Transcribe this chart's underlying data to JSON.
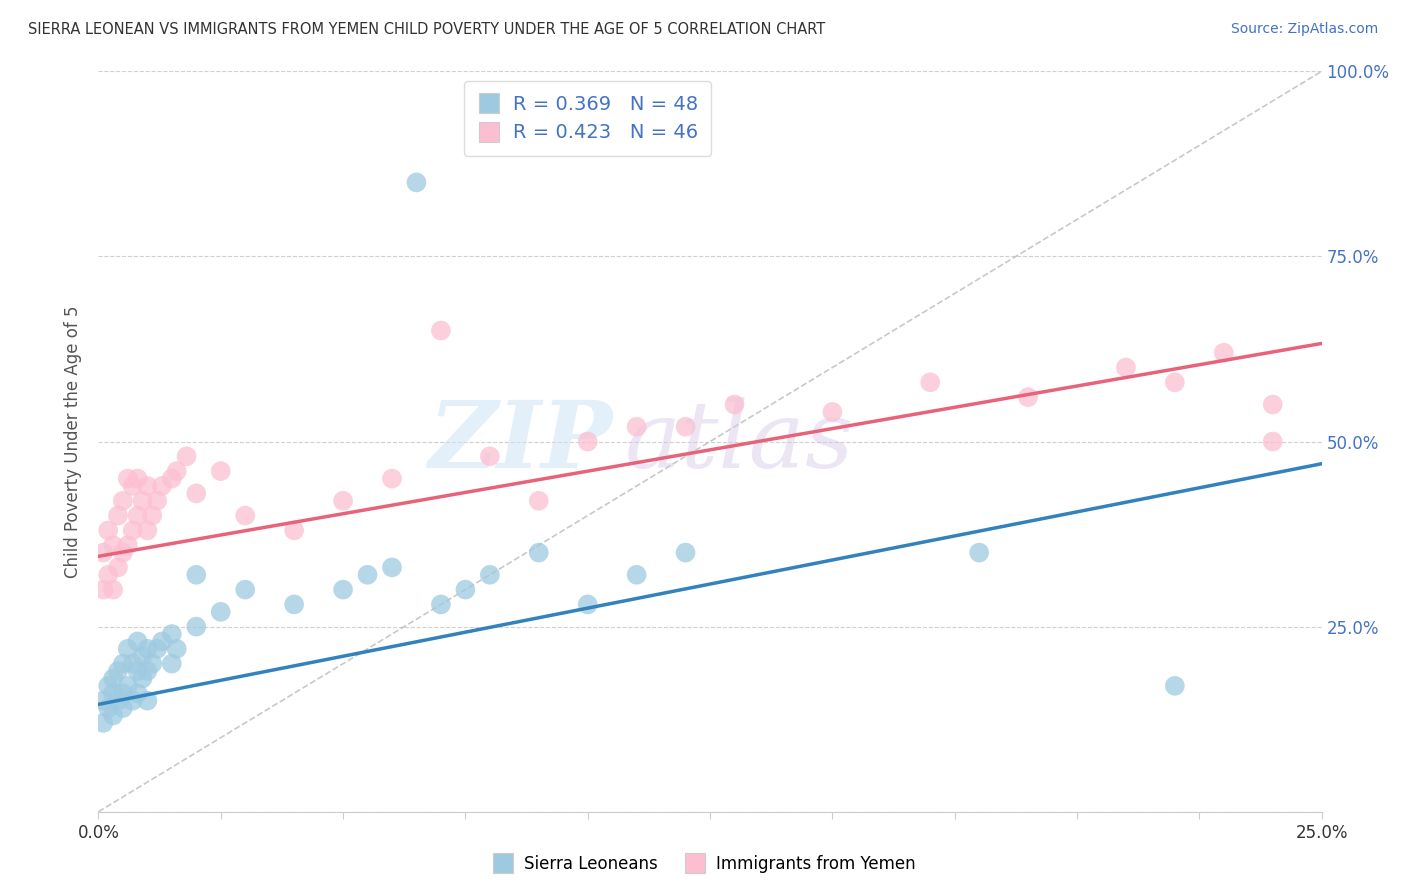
{
  "title": "SIERRA LEONEAN VS IMMIGRANTS FROM YEMEN CHILD POVERTY UNDER THE AGE OF 5 CORRELATION CHART",
  "source": "Source: ZipAtlas.com",
  "ylabel": "Child Poverty Under the Age of 5",
  "xlim": [
    0.0,
    0.25
  ],
  "ylim": [
    0.0,
    1.0
  ],
  "xticks": [
    0.0,
    0.025,
    0.05,
    0.075,
    0.1,
    0.125,
    0.15,
    0.175,
    0.2,
    0.225,
    0.25
  ],
  "xtick_labels": [
    "0.0%",
    "",
    "",
    "",
    "",
    "",
    "",
    "",
    "",
    "",
    "25.0%"
  ],
  "yticks": [
    0.0,
    0.25,
    0.5,
    0.75,
    1.0
  ],
  "ytick_labels": [
    "",
    "25.0%",
    "50.0%",
    "75.0%",
    "100.0%"
  ],
  "blue_color": "#9ecae1",
  "pink_color": "#fcbfd2",
  "blue_line_color": "#3182bd",
  "pink_line_color": "#e8637a",
  "ref_line_color": "#bbbbbb",
  "R_blue": 0.369,
  "N_blue": 48,
  "R_pink": 0.423,
  "N_pink": 46,
  "blue_slope": 1.3,
  "blue_intercept": 0.145,
  "pink_slope": 1.15,
  "pink_intercept": 0.345,
  "blue_line_x_end": 0.25,
  "pink_line_x_end": 0.25,
  "blue_scatter_x": [
    0.001,
    0.001,
    0.002,
    0.002,
    0.003,
    0.003,
    0.003,
    0.004,
    0.004,
    0.005,
    0.005,
    0.005,
    0.006,
    0.006,
    0.007,
    0.007,
    0.008,
    0.008,
    0.008,
    0.009,
    0.009,
    0.01,
    0.01,
    0.01,
    0.011,
    0.012,
    0.013,
    0.015,
    0.015,
    0.016,
    0.02,
    0.02,
    0.025,
    0.03,
    0.04,
    0.05,
    0.055,
    0.06,
    0.065,
    0.07,
    0.075,
    0.08,
    0.09,
    0.1,
    0.11,
    0.12,
    0.18,
    0.22
  ],
  "blue_scatter_y": [
    0.12,
    0.15,
    0.14,
    0.17,
    0.13,
    0.16,
    0.18,
    0.15,
    0.19,
    0.14,
    0.16,
    0.2,
    0.17,
    0.22,
    0.15,
    0.2,
    0.16,
    0.19,
    0.23,
    0.18,
    0.21,
    0.15,
    0.19,
    0.22,
    0.2,
    0.22,
    0.23,
    0.2,
    0.24,
    0.22,
    0.25,
    0.32,
    0.27,
    0.3,
    0.28,
    0.3,
    0.32,
    0.33,
    0.85,
    0.28,
    0.3,
    0.32,
    0.35,
    0.28,
    0.32,
    0.35,
    0.35,
    0.17
  ],
  "pink_scatter_x": [
    0.001,
    0.001,
    0.002,
    0.002,
    0.003,
    0.003,
    0.004,
    0.004,
    0.005,
    0.005,
    0.006,
    0.006,
    0.007,
    0.007,
    0.008,
    0.008,
    0.009,
    0.01,
    0.01,
    0.011,
    0.012,
    0.013,
    0.015,
    0.016,
    0.018,
    0.02,
    0.025,
    0.03,
    0.04,
    0.05,
    0.06,
    0.07,
    0.08,
    0.09,
    0.1,
    0.11,
    0.12,
    0.13,
    0.15,
    0.17,
    0.19,
    0.21,
    0.22,
    0.23,
    0.24,
    0.24
  ],
  "pink_scatter_y": [
    0.3,
    0.35,
    0.32,
    0.38,
    0.3,
    0.36,
    0.33,
    0.4,
    0.35,
    0.42,
    0.36,
    0.45,
    0.38,
    0.44,
    0.4,
    0.45,
    0.42,
    0.38,
    0.44,
    0.4,
    0.42,
    0.44,
    0.45,
    0.46,
    0.48,
    0.43,
    0.46,
    0.4,
    0.38,
    0.42,
    0.45,
    0.65,
    0.48,
    0.42,
    0.5,
    0.52,
    0.52,
    0.55,
    0.54,
    0.58,
    0.56,
    0.6,
    0.58,
    0.62,
    0.55,
    0.5
  ],
  "watermark_zip": "ZIP",
  "watermark_atlas": "atlas",
  "figsize": [
    14.06,
    8.92
  ],
  "dpi": 100
}
